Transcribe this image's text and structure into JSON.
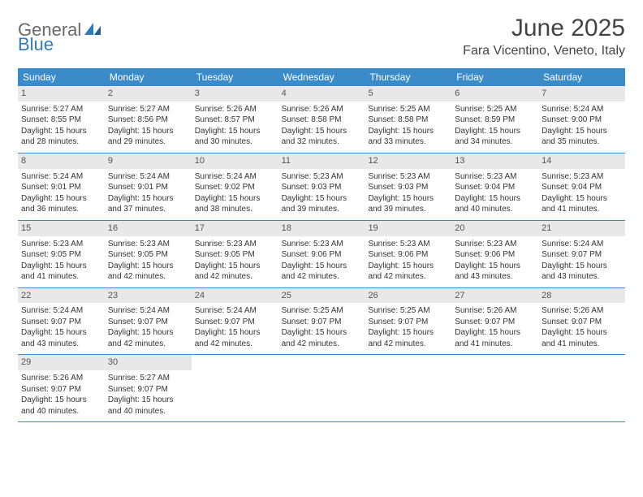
{
  "logo": {
    "text1": "General",
    "text2": "Blue"
  },
  "header": {
    "title": "June 2025",
    "location": "Fara Vicentino, Veneto, Italy"
  },
  "colors": {
    "header_bar": "#3b8bc8",
    "day_number_bg": "#e8e8e8",
    "logo_gray": "#6a6a6a",
    "logo_blue": "#2f7bbf",
    "text": "#333333"
  },
  "weekdays": [
    "Sunday",
    "Monday",
    "Tuesday",
    "Wednesday",
    "Thursday",
    "Friday",
    "Saturday"
  ],
  "weeks": [
    [
      {
        "n": "1",
        "sunrise": "5:27 AM",
        "sunset": "8:55 PM",
        "daylight": "15 hours and 28 minutes."
      },
      {
        "n": "2",
        "sunrise": "5:27 AM",
        "sunset": "8:56 PM",
        "daylight": "15 hours and 29 minutes."
      },
      {
        "n": "3",
        "sunrise": "5:26 AM",
        "sunset": "8:57 PM",
        "daylight": "15 hours and 30 minutes."
      },
      {
        "n": "4",
        "sunrise": "5:26 AM",
        "sunset": "8:58 PM",
        "daylight": "15 hours and 32 minutes."
      },
      {
        "n": "5",
        "sunrise": "5:25 AM",
        "sunset": "8:58 PM",
        "daylight": "15 hours and 33 minutes."
      },
      {
        "n": "6",
        "sunrise": "5:25 AM",
        "sunset": "8:59 PM",
        "daylight": "15 hours and 34 minutes."
      },
      {
        "n": "7",
        "sunrise": "5:24 AM",
        "sunset": "9:00 PM",
        "daylight": "15 hours and 35 minutes."
      }
    ],
    [
      {
        "n": "8",
        "sunrise": "5:24 AM",
        "sunset": "9:01 PM",
        "daylight": "15 hours and 36 minutes."
      },
      {
        "n": "9",
        "sunrise": "5:24 AM",
        "sunset": "9:01 PM",
        "daylight": "15 hours and 37 minutes."
      },
      {
        "n": "10",
        "sunrise": "5:24 AM",
        "sunset": "9:02 PM",
        "daylight": "15 hours and 38 minutes."
      },
      {
        "n": "11",
        "sunrise": "5:23 AM",
        "sunset": "9:03 PM",
        "daylight": "15 hours and 39 minutes."
      },
      {
        "n": "12",
        "sunrise": "5:23 AM",
        "sunset": "9:03 PM",
        "daylight": "15 hours and 39 minutes."
      },
      {
        "n": "13",
        "sunrise": "5:23 AM",
        "sunset": "9:04 PM",
        "daylight": "15 hours and 40 minutes."
      },
      {
        "n": "14",
        "sunrise": "5:23 AM",
        "sunset": "9:04 PM",
        "daylight": "15 hours and 41 minutes."
      }
    ],
    [
      {
        "n": "15",
        "sunrise": "5:23 AM",
        "sunset": "9:05 PM",
        "daylight": "15 hours and 41 minutes."
      },
      {
        "n": "16",
        "sunrise": "5:23 AM",
        "sunset": "9:05 PM",
        "daylight": "15 hours and 42 minutes."
      },
      {
        "n": "17",
        "sunrise": "5:23 AM",
        "sunset": "9:05 PM",
        "daylight": "15 hours and 42 minutes."
      },
      {
        "n": "18",
        "sunrise": "5:23 AM",
        "sunset": "9:06 PM",
        "daylight": "15 hours and 42 minutes."
      },
      {
        "n": "19",
        "sunrise": "5:23 AM",
        "sunset": "9:06 PM",
        "daylight": "15 hours and 42 minutes."
      },
      {
        "n": "20",
        "sunrise": "5:23 AM",
        "sunset": "9:06 PM",
        "daylight": "15 hours and 43 minutes."
      },
      {
        "n": "21",
        "sunrise": "5:24 AM",
        "sunset": "9:07 PM",
        "daylight": "15 hours and 43 minutes."
      }
    ],
    [
      {
        "n": "22",
        "sunrise": "5:24 AM",
        "sunset": "9:07 PM",
        "daylight": "15 hours and 43 minutes."
      },
      {
        "n": "23",
        "sunrise": "5:24 AM",
        "sunset": "9:07 PM",
        "daylight": "15 hours and 42 minutes."
      },
      {
        "n": "24",
        "sunrise": "5:24 AM",
        "sunset": "9:07 PM",
        "daylight": "15 hours and 42 minutes."
      },
      {
        "n": "25",
        "sunrise": "5:25 AM",
        "sunset": "9:07 PM",
        "daylight": "15 hours and 42 minutes."
      },
      {
        "n": "26",
        "sunrise": "5:25 AM",
        "sunset": "9:07 PM",
        "daylight": "15 hours and 42 minutes."
      },
      {
        "n": "27",
        "sunrise": "5:26 AM",
        "sunset": "9:07 PM",
        "daylight": "15 hours and 41 minutes."
      },
      {
        "n": "28",
        "sunrise": "5:26 AM",
        "sunset": "9:07 PM",
        "daylight": "15 hours and 41 minutes."
      }
    ],
    [
      {
        "n": "29",
        "sunrise": "5:26 AM",
        "sunset": "9:07 PM",
        "daylight": "15 hours and 40 minutes."
      },
      {
        "n": "30",
        "sunrise": "5:27 AM",
        "sunset": "9:07 PM",
        "daylight": "15 hours and 40 minutes."
      },
      null,
      null,
      null,
      null,
      null
    ]
  ],
  "labels": {
    "sunrise": "Sunrise:",
    "sunset": "Sunset:",
    "daylight": "Daylight:"
  }
}
